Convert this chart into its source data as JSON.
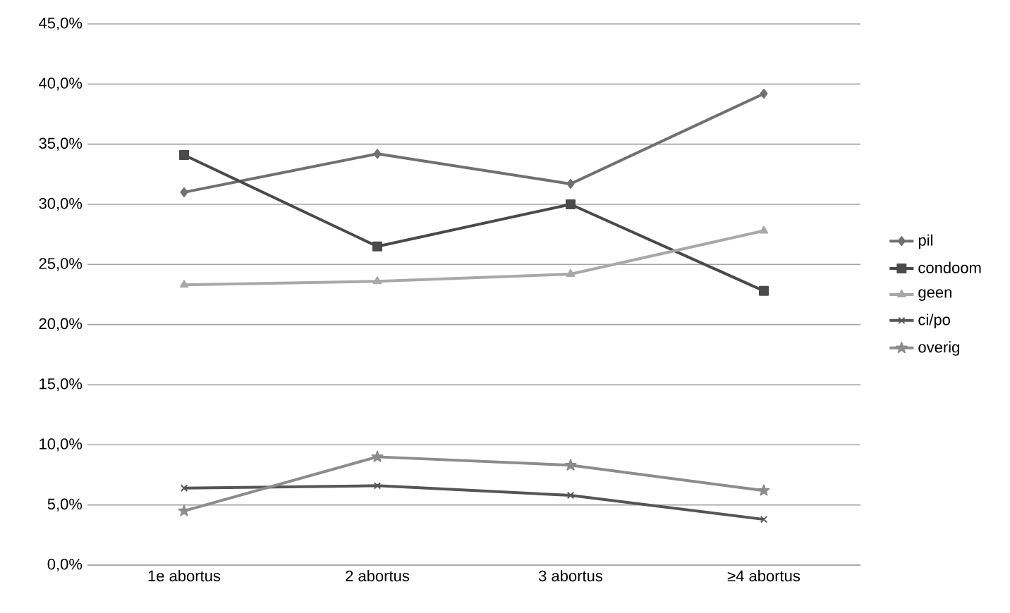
{
  "chart_data": {
    "type": "line",
    "categories": [
      "1e abortus",
      "2 abortus",
      "3 abortus",
      "≥4 abortus"
    ],
    "series": [
      {
        "name": "pil",
        "color": "#707070",
        "marker": "diamond",
        "values": [
          31.0,
          34.2,
          31.7,
          39.2
        ]
      },
      {
        "name": "condoom",
        "color": "#4a4a4a",
        "marker": "square",
        "values": [
          34.1,
          26.5,
          30.0,
          22.8
        ]
      },
      {
        "name": "geen",
        "color": "#a8a8a8",
        "marker": "triangle",
        "values": [
          23.3,
          23.6,
          24.2,
          27.8
        ]
      },
      {
        "name": "ci/po",
        "color": "#555555",
        "marker": "cross",
        "values": [
          6.4,
          6.6,
          5.8,
          3.8
        ]
      },
      {
        "name": "overig",
        "color": "#8c8c8c",
        "marker": "star",
        "values": [
          4.5,
          9.0,
          8.3,
          6.2
        ]
      }
    ],
    "ylim": [
      0,
      45
    ],
    "yticks": [
      {
        "value": 0,
        "label": "0,0%"
      },
      {
        "value": 5,
        "label": "5,0%"
      },
      {
        "value": 10,
        "label": "10,0%"
      },
      {
        "value": 15,
        "label": "15,0%"
      },
      {
        "value": 20,
        "label": "20,0%"
      },
      {
        "value": 25,
        "label": "25,0%"
      },
      {
        "value": 30,
        "label": "30,0%"
      },
      {
        "value": 35,
        "label": "35,0%"
      },
      {
        "value": 40,
        "label": "40,0%"
      },
      {
        "value": 45,
        "label": "45,0%"
      }
    ],
    "grid": "y",
    "legend": "right",
    "line_style": "solid"
  }
}
